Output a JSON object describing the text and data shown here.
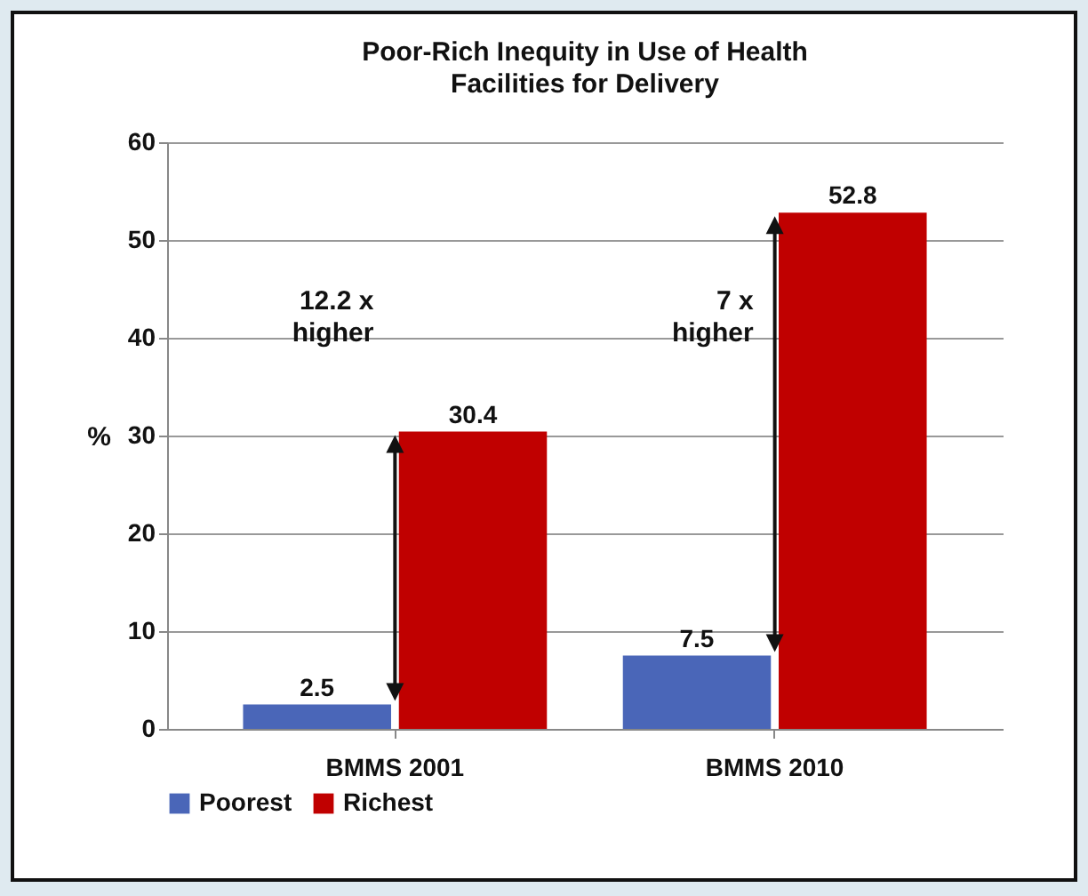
{
  "chart_data": {
    "type": "bar",
    "title": "Poor-Rich Inequity in Use of Health Facilities for Delivery",
    "ylabel": "%",
    "categories": [
      "BMMS 2001",
      "BMMS 2010"
    ],
    "series": [
      {
        "name": "Poorest",
        "color": "#4a66b8",
        "values": [
          2.5,
          7.5
        ]
      },
      {
        "name": "Richest",
        "color": "#c00000",
        "values": [
          30.4,
          52.8
        ]
      }
    ],
    "ylim": [
      0,
      60
    ],
    "yticks": [
      0,
      10,
      20,
      30,
      40,
      50,
      60
    ],
    "grid": "y",
    "legend": "bottom",
    "data_labels": true,
    "annotations": [
      "12.2 x higher",
      "7 x higher"
    ]
  }
}
